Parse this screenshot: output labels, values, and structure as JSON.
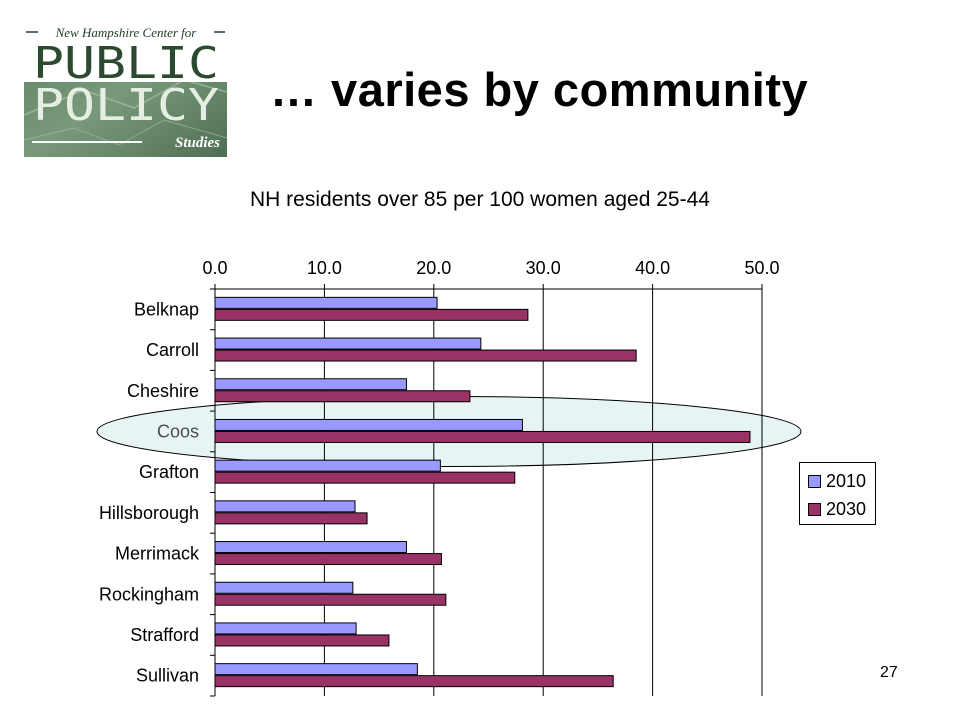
{
  "logo": {
    "line1": "New Hampshire Center for",
    "line2": "PUBLIC",
    "line3": "POLICY",
    "line4": "Studies"
  },
  "slide": {
    "title": "… varies by community",
    "page_number": "27"
  },
  "colors": {
    "series_2010": "#9999ff",
    "series_2030": "#993366",
    "highlight_fill": "#e6f4f4"
  },
  "chart_data": {
    "type": "bar",
    "orientation": "horizontal",
    "title": "NH residents over 85 per 100 women aged 25-44",
    "categories": [
      "Belknap",
      "Carroll",
      "Cheshire",
      "Coos",
      "Grafton",
      "Hillsborough",
      "Merrimack",
      "Rockingham",
      "Strafford",
      "Sullivan"
    ],
    "series": [
      {
        "name": "2010",
        "values": [
          20.3,
          24.3,
          17.5,
          28.1,
          20.6,
          12.8,
          17.5,
          12.6,
          12.9,
          18.5
        ]
      },
      {
        "name": "2030",
        "values": [
          28.6,
          38.5,
          23.3,
          48.9,
          27.4,
          13.9,
          20.7,
          21.1,
          15.9,
          36.4
        ]
      }
    ],
    "xlim": [
      0,
      50
    ],
    "xticks": [
      "0.0",
      "10.0",
      "20.0",
      "30.0",
      "40.0",
      "50.0"
    ],
    "axis_position": "top",
    "grid": true,
    "legend": "right",
    "highlighted_category": "Coos"
  }
}
